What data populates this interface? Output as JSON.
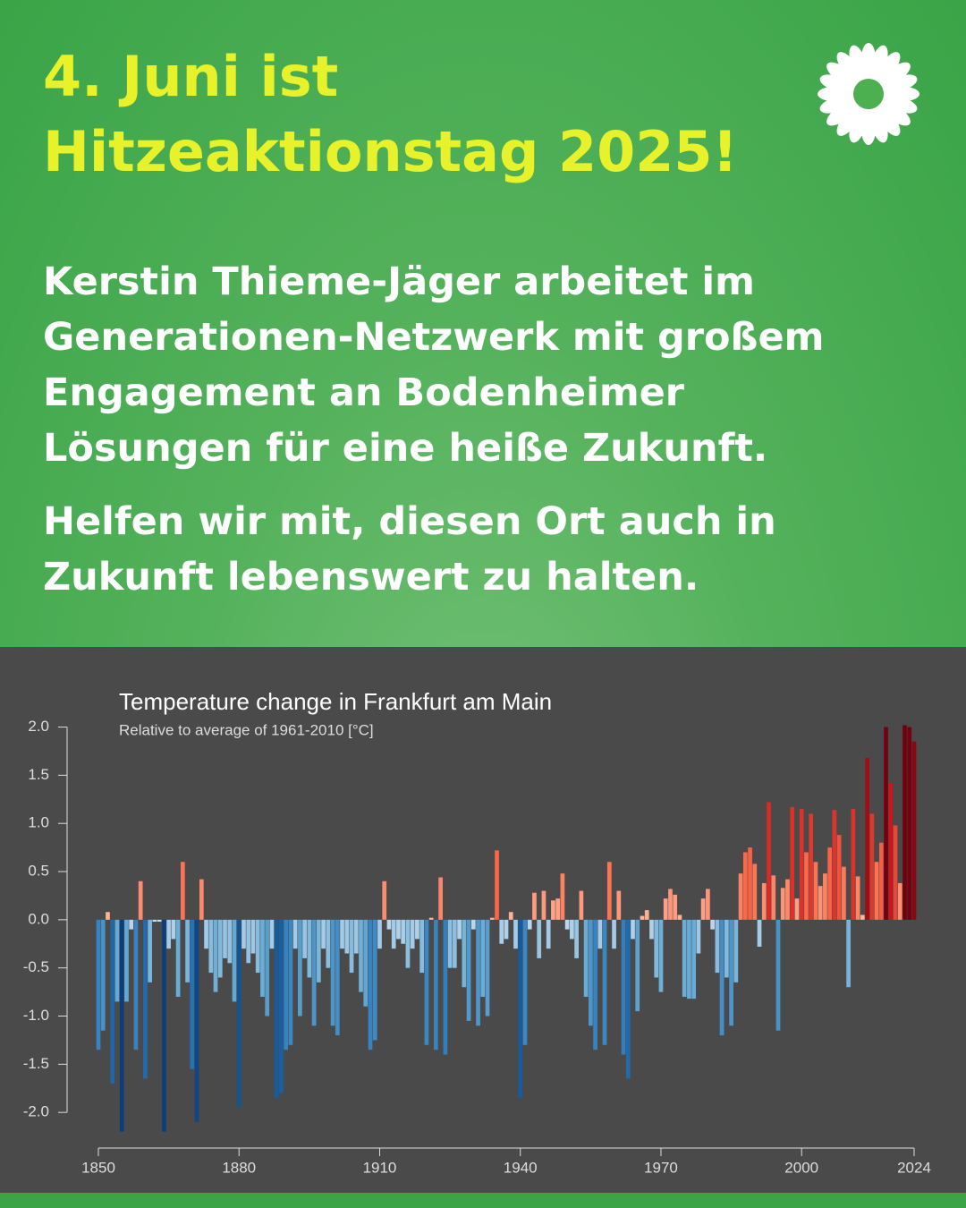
{
  "header": {
    "title_lines": [
      "4. Juni ist",
      "Hitzeaktionstag 2025!"
    ],
    "paragraphs": [
      [
        "Kerstin Thieme-Jäger arbeitet im",
        "Generationen-Netzwerk mit großem",
        "Engagement an Bodenheimer",
        "Lösungen für eine heiße Zukunft."
      ],
      [
        "Helfen wir mit, diesen Ort auch in",
        "Zukunft lebenswert zu halten."
      ]
    ]
  },
  "chart_data": {
    "type": "bar",
    "title": "Temperature change in Frankfurt am Main",
    "subtitle": "Relative to average of 1961-2010  [°C]",
    "x": [
      1850,
      1851,
      1852,
      1853,
      1854,
      1855,
      1856,
      1857,
      1858,
      1859,
      1860,
      1861,
      1862,
      1863,
      1864,
      1865,
      1866,
      1867,
      1868,
      1869,
      1870,
      1871,
      1872,
      1873,
      1874,
      1875,
      1876,
      1877,
      1878,
      1879,
      1880,
      1881,
      1882,
      1883,
      1884,
      1885,
      1886,
      1887,
      1888,
      1889,
      1890,
      1891,
      1892,
      1893,
      1894,
      1895,
      1896,
      1897,
      1898,
      1899,
      1900,
      1901,
      1902,
      1903,
      1904,
      1905,
      1906,
      1907,
      1908,
      1909,
      1910,
      1911,
      1912,
      1913,
      1914,
      1915,
      1916,
      1917,
      1918,
      1919,
      1920,
      1921,
      1922,
      1923,
      1924,
      1925,
      1926,
      1927,
      1928,
      1929,
      1930,
      1931,
      1932,
      1933,
      1934,
      1935,
      1936,
      1937,
      1938,
      1939,
      1940,
      1941,
      1942,
      1943,
      1944,
      1945,
      1946,
      1947,
      1948,
      1949,
      1950,
      1951,
      1952,
      1953,
      1954,
      1955,
      1956,
      1957,
      1958,
      1959,
      1960,
      1961,
      1962,
      1963,
      1964,
      1965,
      1966,
      1967,
      1968,
      1969,
      1970,
      1971,
      1972,
      1973,
      1974,
      1975,
      1976,
      1977,
      1978,
      1979,
      1980,
      1981,
      1982,
      1983,
      1984,
      1985,
      1986,
      1987,
      1988,
      1989,
      1990,
      1991,
      1992,
      1993,
      1994,
      1995,
      1996,
      1997,
      1998,
      1999,
      2000,
      2001,
      2002,
      2003,
      2004,
      2005,
      2006,
      2007,
      2008,
      2009,
      2010,
      2011,
      2012,
      2013,
      2014,
      2015,
      2016,
      2017,
      2018,
      2019,
      2020,
      2021,
      2022,
      2023,
      2024
    ],
    "values": [
      -1.35,
      -1.15,
      0.08,
      -1.7,
      -0.85,
      -2.2,
      -0.85,
      -0.1,
      -1.35,
      0.4,
      -1.65,
      -0.65,
      -0.02,
      -0.02,
      -2.2,
      -0.3,
      -0.2,
      -0.8,
      0.6,
      -0.65,
      -1.55,
      -2.1,
      0.42,
      -0.3,
      -0.55,
      -0.75,
      -0.6,
      -0.4,
      -0.45,
      -0.85,
      -1.95,
      -0.3,
      -0.45,
      -0.35,
      -0.55,
      -0.8,
      -1.0,
      -0.3,
      -1.85,
      -1.8,
      -1.35,
      -1.3,
      -0.3,
      -1.0,
      -0.4,
      -0.6,
      -1.1,
      -0.65,
      -0.3,
      -0.5,
      -1.1,
      -1.2,
      -0.3,
      -0.35,
      -0.55,
      -0.35,
      -0.75,
      -0.9,
      -1.35,
      -1.25,
      -0.3,
      0.4,
      -0.1,
      -0.3,
      -0.2,
      -0.25,
      -0.5,
      -0.3,
      -0.2,
      -0.55,
      -1.3,
      0.02,
      -1.35,
      0.44,
      -1.4,
      -0.5,
      -0.5,
      -0.2,
      -0.7,
      -1.05,
      -0.1,
      -1.1,
      -0.8,
      -1.0,
      0.02,
      0.72,
      -0.25,
      -0.2,
      0.08,
      -0.3,
      -1.85,
      -1.3,
      -0.1,
      0.28,
      -0.4,
      0.3,
      -0.3,
      0.2,
      0.22,
      0.48,
      -0.1,
      -0.2,
      -0.4,
      0.3,
      -0.8,
      -1.1,
      -1.35,
      -0.3,
      -1.3,
      0.6,
      -0.3,
      0.3,
      -1.4,
      -1.65,
      -0.2,
      -0.95,
      0.04,
      0.1,
      -0.2,
      -0.6,
      -0.75,
      0.22,
      0.32,
      0.26,
      0.05,
      -0.8,
      -0.82,
      -0.82,
      -0.35,
      0.22,
      0.32,
      -0.1,
      -0.55,
      -1.2,
      -0.6,
      -1.1,
      -0.65,
      0.48,
      0.7,
      0.75,
      0.58,
      -0.28,
      0.38,
      1.22,
      0.46,
      -1.15,
      0.33,
      0.42,
      1.17,
      0.22,
      1.15,
      0.7,
      1.1,
      0.6,
      0.35,
      0.48,
      0.75,
      1.14,
      0.88,
      0.55,
      -0.7,
      1.15,
      0.45,
      0.05,
      1.68,
      1.1,
      0.6,
      0.8,
      2.0,
      1.42,
      0.98,
      0.38,
      2.02,
      2.0,
      1.85
    ],
    "negative_colors": [
      "#c6dbef",
      "#6baed6",
      "#2171b5",
      "#08306b"
    ],
    "positive_colors": [
      "#fcbba1",
      "#fb6a4a",
      "#cb181d",
      "#67000d"
    ],
    "xlim": [
      1850,
      2024
    ],
    "xticks": [
      1850,
      1880,
      1910,
      1940,
      1970,
      2000,
      2024
    ],
    "ylim": [
      -2.37,
      2.07
    ],
    "yticks": [
      {
        "value": 2,
        "label": "2.0"
      },
      1.5,
      {
        "value": 1,
        "label": "1.0"
      },
      0.5,
      {
        "value": 0,
        "label": "0.0"
      },
      -0.5,
      {
        "value": -1,
        "label": "-1.0"
      },
      -1.5,
      {
        "value": -2,
        "label": "-2.0"
      }
    ]
  }
}
